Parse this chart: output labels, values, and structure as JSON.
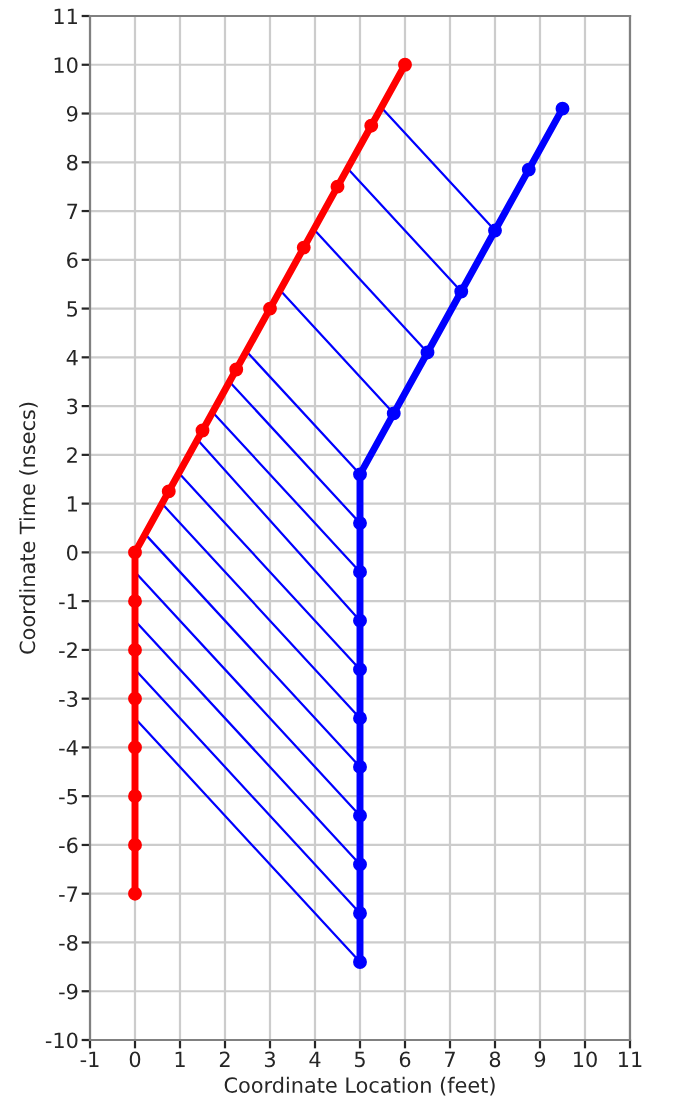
{
  "chart_data": {
    "type": "line",
    "xlabel": "Coordinate Location (feet)",
    "ylabel": "Coordinate Time (nsecs)",
    "xlim": [
      -1,
      11
    ],
    "ylim": [
      -10,
      11
    ],
    "xticks": [
      -1,
      0,
      1,
      2,
      3,
      4,
      5,
      6,
      7,
      8,
      9,
      10,
      11
    ],
    "yticks": [
      -10,
      -9,
      -8,
      -7,
      -6,
      -5,
      -4,
      -3,
      -2,
      -1,
      0,
      1,
      2,
      3,
      4,
      5,
      6,
      7,
      8,
      9,
      10,
      11
    ],
    "grid": true,
    "series": [
      {
        "color": "#ff0000",
        "marker": "circle",
        "x": [
          0,
          0,
          0,
          0,
          0,
          0,
          0,
          0,
          0.75,
          1.5,
          2.25,
          3,
          3.75,
          4.5,
          5.25,
          6
        ],
        "values": [
          -7,
          -6,
          -5,
          -4,
          -3,
          -2,
          -1,
          0,
          1.25,
          2.5,
          3.75,
          5,
          6.25,
          7.5,
          8.75,
          10
        ]
      },
      {
        "color": "#0000ff",
        "marker": "circle",
        "x": [
          5,
          5,
          5,
          5,
          5,
          5,
          5,
          5,
          5,
          5,
          5,
          5.75,
          6.5,
          7.25,
          8,
          8.75,
          9.5
        ],
        "values": [
          -8.4,
          -7.4,
          -6.4,
          -5.4,
          -4.4,
          -3.4,
          -2.4,
          -1.4,
          -0.4,
          0.6,
          1.6,
          2.85,
          4.1,
          5.35,
          6.6,
          7.85,
          9.1
        ]
      },
      {
        "color": "#0000ff",
        "marker": "none",
        "x": [
          0,
          5
        ],
        "values": [
          -3.4,
          -8.4
        ]
      },
      {
        "color": "#0000ff",
        "marker": "none",
        "x": [
          0,
          5
        ],
        "values": [
          -2.4,
          -7.4
        ]
      },
      {
        "color": "#0000ff",
        "marker": "none",
        "x": [
          0,
          5
        ],
        "values": [
          -1.4,
          -6.4
        ]
      },
      {
        "color": "#0000ff",
        "marker": "none",
        "x": [
          0,
          5
        ],
        "values": [
          -0.4,
          -5.4
        ]
      },
      {
        "color": "#0000ff",
        "marker": "none",
        "x": [
          0.2,
          5
        ],
        "values": [
          0.4,
          -4.4
        ]
      },
      {
        "color": "#0000ff",
        "marker": "none",
        "x": [
          0.6,
          5
        ],
        "values": [
          1,
          -3.4
        ]
      },
      {
        "color": "#0000ff",
        "marker": "none",
        "x": [
          1,
          5
        ],
        "values": [
          1.6,
          -2.4
        ]
      },
      {
        "color": "#0000ff",
        "marker": "none",
        "x": [
          1.4,
          5
        ],
        "values": [
          2.3,
          -1.4
        ]
      },
      {
        "color": "#0000ff",
        "marker": "none",
        "x": [
          1.7,
          5
        ],
        "values": [
          2.9,
          -0.4
        ]
      },
      {
        "color": "#0000ff",
        "marker": "none",
        "x": [
          2.1,
          5
        ],
        "values": [
          3.5,
          0.6
        ]
      },
      {
        "color": "#0000ff",
        "marker": "none",
        "x": [
          2.5,
          5
        ],
        "values": [
          4.1,
          1.6
        ]
      },
      {
        "color": "#0000ff",
        "marker": "none",
        "x": [
          3.2,
          5.75
        ],
        "values": [
          5.4,
          2.85
        ]
      },
      {
        "color": "#0000ff",
        "marker": "none",
        "x": [
          4,
          6.5
        ],
        "values": [
          6.6,
          4.1
        ]
      },
      {
        "color": "#0000ff",
        "marker": "none",
        "x": [
          4.7,
          7.25
        ],
        "values": [
          7.9,
          5.35
        ]
      },
      {
        "color": "#0000ff",
        "marker": "none",
        "x": [
          5.5,
          8
        ],
        "values": [
          9.1,
          6.6
        ]
      }
    ]
  }
}
